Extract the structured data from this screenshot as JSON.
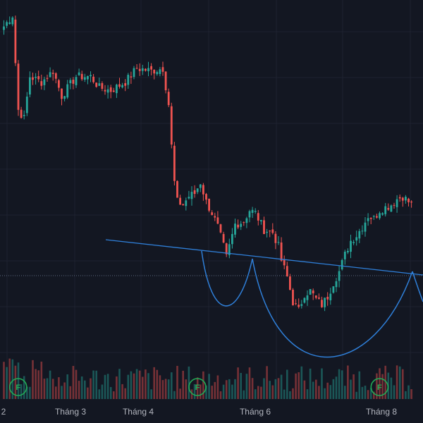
{
  "chart_data": {
    "type": "candlestick",
    "colors": {
      "background": "#131722",
      "grid": "#1e2230",
      "up": "#26a69a",
      "down": "#ef5350",
      "trendline": "#2f7fd8",
      "pattern": "#2f7fd8",
      "price_line": "#5d6a7e",
      "marker": "#22ab56"
    },
    "x_tick_labels": [
      "2",
      "Tháng 3",
      "Tháng 4",
      "Tháng 6",
      "Tháng 8"
    ],
    "pattern_shapes": [
      "trendline",
      "left-cup",
      "main-cup",
      "right-cup"
    ],
    "markers": [
      {
        "label": "F",
        "date_index": 3
      },
      {
        "label": "F",
        "date_index": 65
      },
      {
        "label": "F",
        "date_index": 128
      }
    ],
    "series": [
      {
        "name": "",
        "type": "candlestick",
        "close_path": [
          [
            0,
            88
          ],
          [
            3,
            92
          ],
          [
            5,
            58
          ],
          [
            7,
            55
          ],
          [
            9,
            70
          ],
          [
            13,
            68
          ],
          [
            17,
            72
          ],
          [
            20,
            63
          ],
          [
            25,
            70
          ],
          [
            30,
            70
          ],
          [
            33,
            66
          ],
          [
            37,
            65
          ],
          [
            42,
            68
          ],
          [
            46,
            73
          ],
          [
            51,
            72
          ],
          [
            55,
            73
          ],
          [
            57,
            60
          ],
          [
            58,
            45
          ],
          [
            59,
            32
          ],
          [
            60,
            25
          ],
          [
            62,
            24
          ],
          [
            64,
            27
          ],
          [
            66,
            28
          ],
          [
            68,
            32
          ],
          [
            70,
            25
          ],
          [
            72,
            21
          ],
          [
            74,
            16
          ],
          [
            76,
            9
          ],
          [
            77,
            5
          ],
          [
            78,
            9
          ],
          [
            80,
            17
          ],
          [
            83,
            18
          ],
          [
            85,
            22
          ],
          [
            87,
            21
          ],
          [
            90,
            15
          ],
          [
            93,
            14
          ],
          [
            95,
            9
          ],
          [
            96,
            4
          ],
          [
            98,
            -2
          ],
          [
            100,
            -11
          ],
          [
            102,
            -14
          ],
          [
            104,
            -8
          ],
          [
            106,
            -7
          ],
          [
            108,
            -10
          ],
          [
            110,
            -12
          ],
          [
            112,
            -9
          ],
          [
            114,
            -4
          ],
          [
            116,
            0
          ],
          [
            118,
            6
          ],
          [
            120,
            11
          ],
          [
            122,
            13
          ],
          [
            124,
            16
          ],
          [
            126,
            20
          ],
          [
            128,
            19
          ],
          [
            130,
            22
          ],
          [
            132,
            23
          ],
          [
            134,
            24
          ],
          [
            136,
            26
          ],
          [
            138,
            27
          ],
          [
            140,
            25
          ],
          [
            141,
            24
          ]
        ]
      }
    ]
  }
}
